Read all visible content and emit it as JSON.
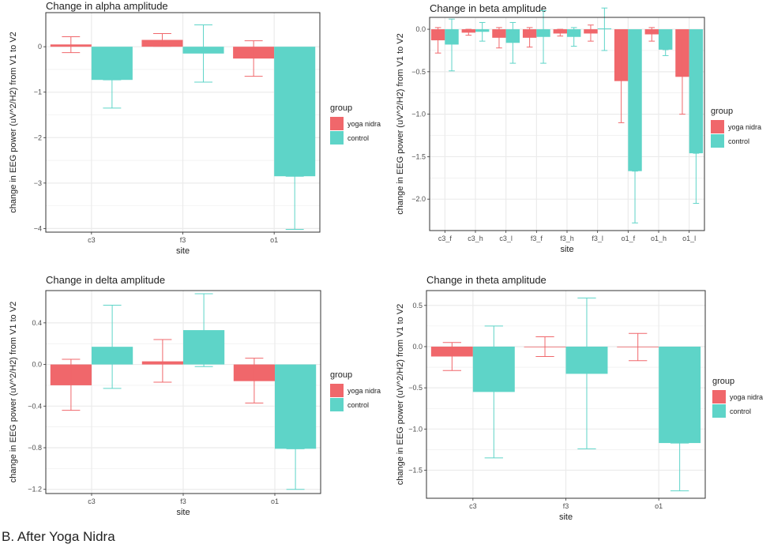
{
  "caption": "B. After Yoga Nidra",
  "colors": {
    "yoga": "#F0676B",
    "control": "#5ED4C8",
    "panel": "#FFFFFF",
    "grid": "#EBEBEB",
    "border": "#333333"
  },
  "chart_data": [
    {
      "id": "alpha",
      "type": "bar",
      "title": "Change in alpha amplitude",
      "xlabel": "site",
      "ylabel": "change in EEG power (uV^2/H2) from V1 to V2",
      "categories": [
        "c3",
        "f3",
        "o1"
      ],
      "ylim": [
        -4.08,
        0.75
      ],
      "yticks": [
        0,
        -1,
        -2,
        -3,
        -4
      ],
      "ytick_labels": [
        "0",
        "−1",
        "−2",
        "−3",
        "−4"
      ],
      "legend_title": "group",
      "series": [
        {
          "name": "yoga nidra",
          "values": [
            0.05,
            0.15,
            -0.26
          ],
          "err_low": [
            -0.13,
            0.01,
            -0.65
          ],
          "err_high": [
            0.22,
            0.29,
            0.13
          ]
        },
        {
          "name": "control",
          "values": [
            -0.73,
            -0.15,
            -2.85
          ],
          "err_low": [
            -1.35,
            -0.78,
            -4.02
          ],
          "err_high": [
            -0.73,
            0.48,
            -2.85
          ]
        }
      ]
    },
    {
      "id": "beta",
      "type": "bar",
      "title": "Change in beta amplitude",
      "xlabel": "site",
      "ylabel": "change in EEG power (uV^2/H2) from V1 to V2",
      "categories": [
        "c3_f",
        "c3_h",
        "c3_l",
        "f3_f",
        "f3_h",
        "f3_l",
        "o1_f",
        "o1_h",
        "o1_l"
      ],
      "ylim": [
        -2.37,
        0.14
      ],
      "yticks": [
        0.0,
        -0.5,
        -1.0,
        -1.5,
        -2.0
      ],
      "ytick_labels": [
        "0.0",
        "−0.5",
        "−1.0",
        "−1.5",
        "−2.0"
      ],
      "legend_title": "group",
      "series": [
        {
          "name": "yoga nidra",
          "values": [
            -0.13,
            -0.04,
            -0.1,
            -0.1,
            -0.05,
            -0.05,
            -0.61,
            -0.06,
            -0.56
          ],
          "err_low": [
            -0.28,
            -0.07,
            -0.22,
            -0.21,
            -0.08,
            -0.14,
            -1.1,
            -0.14,
            -1.0
          ],
          "err_high": [
            0.02,
            0.0,
            0.02,
            0.02,
            0.0,
            0.05,
            -0.13,
            0.02,
            -0.13
          ]
        },
        {
          "name": "control",
          "values": [
            -0.18,
            -0.03,
            -0.16,
            -0.09,
            -0.09,
            0.01,
            -1.67,
            -0.24,
            -1.46
          ],
          "err_low": [
            -0.49,
            -0.14,
            -0.4,
            -0.4,
            -0.2,
            -0.25,
            -2.28,
            -0.31,
            -2.05
          ],
          "err_high": [
            0.12,
            0.08,
            0.08,
            0.22,
            0.02,
            0.25,
            -1.67,
            -0.24,
            -1.46
          ]
        }
      ]
    },
    {
      "id": "delta",
      "type": "bar",
      "title": "Change in delta amplitude",
      "xlabel": "site",
      "ylabel": "change in EEG power (uV^2/H2) from V1 to V2",
      "categories": [
        "c3",
        "f3",
        "o1"
      ],
      "ylim": [
        -1.24,
        0.71
      ],
      "yticks": [
        0.4,
        0.0,
        -0.4,
        -0.8,
        -1.2
      ],
      "ytick_labels": [
        "0.4",
        "0.0",
        "−0.4",
        "−0.8",
        "−1.2"
      ],
      "legend_title": "group",
      "series": [
        {
          "name": "yoga nidra",
          "values": [
            -0.2,
            0.03,
            -0.16
          ],
          "err_low": [
            -0.44,
            -0.17,
            -0.37
          ],
          "err_high": [
            0.05,
            0.24,
            0.06
          ]
        },
        {
          "name": "control",
          "values": [
            0.17,
            0.33,
            -0.81
          ],
          "err_low": [
            -0.23,
            -0.02,
            -1.2
          ],
          "err_high": [
            0.57,
            0.68,
            -0.81
          ]
        }
      ]
    },
    {
      "id": "theta",
      "type": "bar",
      "title": "Change in theta amplitude",
      "xlabel": "site",
      "ylabel": "change in EEG power (uV^2/H2) from V1 to V2",
      "categories": [
        "c3",
        "f3",
        "o1"
      ],
      "ylim": [
        -1.84,
        0.68
      ],
      "yticks": [
        0.5,
        0.0,
        -0.5,
        -1.0,
        -1.5
      ],
      "ytick_labels": [
        "0.5",
        "0.0",
        "−0.5",
        "−1.0",
        "−1.5"
      ],
      "legend_title": "group",
      "series": [
        {
          "name": "yoga nidra",
          "values": [
            -0.12,
            0.0,
            0.0
          ],
          "err_low": [
            -0.29,
            -0.12,
            -0.17
          ],
          "err_high": [
            0.05,
            0.12,
            0.16
          ]
        },
        {
          "name": "control",
          "values": [
            -0.55,
            -0.33,
            -1.17
          ],
          "err_low": [
            -1.35,
            -1.24,
            -1.75
          ],
          "err_high": [
            0.25,
            0.59,
            -1.17
          ]
        }
      ]
    }
  ]
}
